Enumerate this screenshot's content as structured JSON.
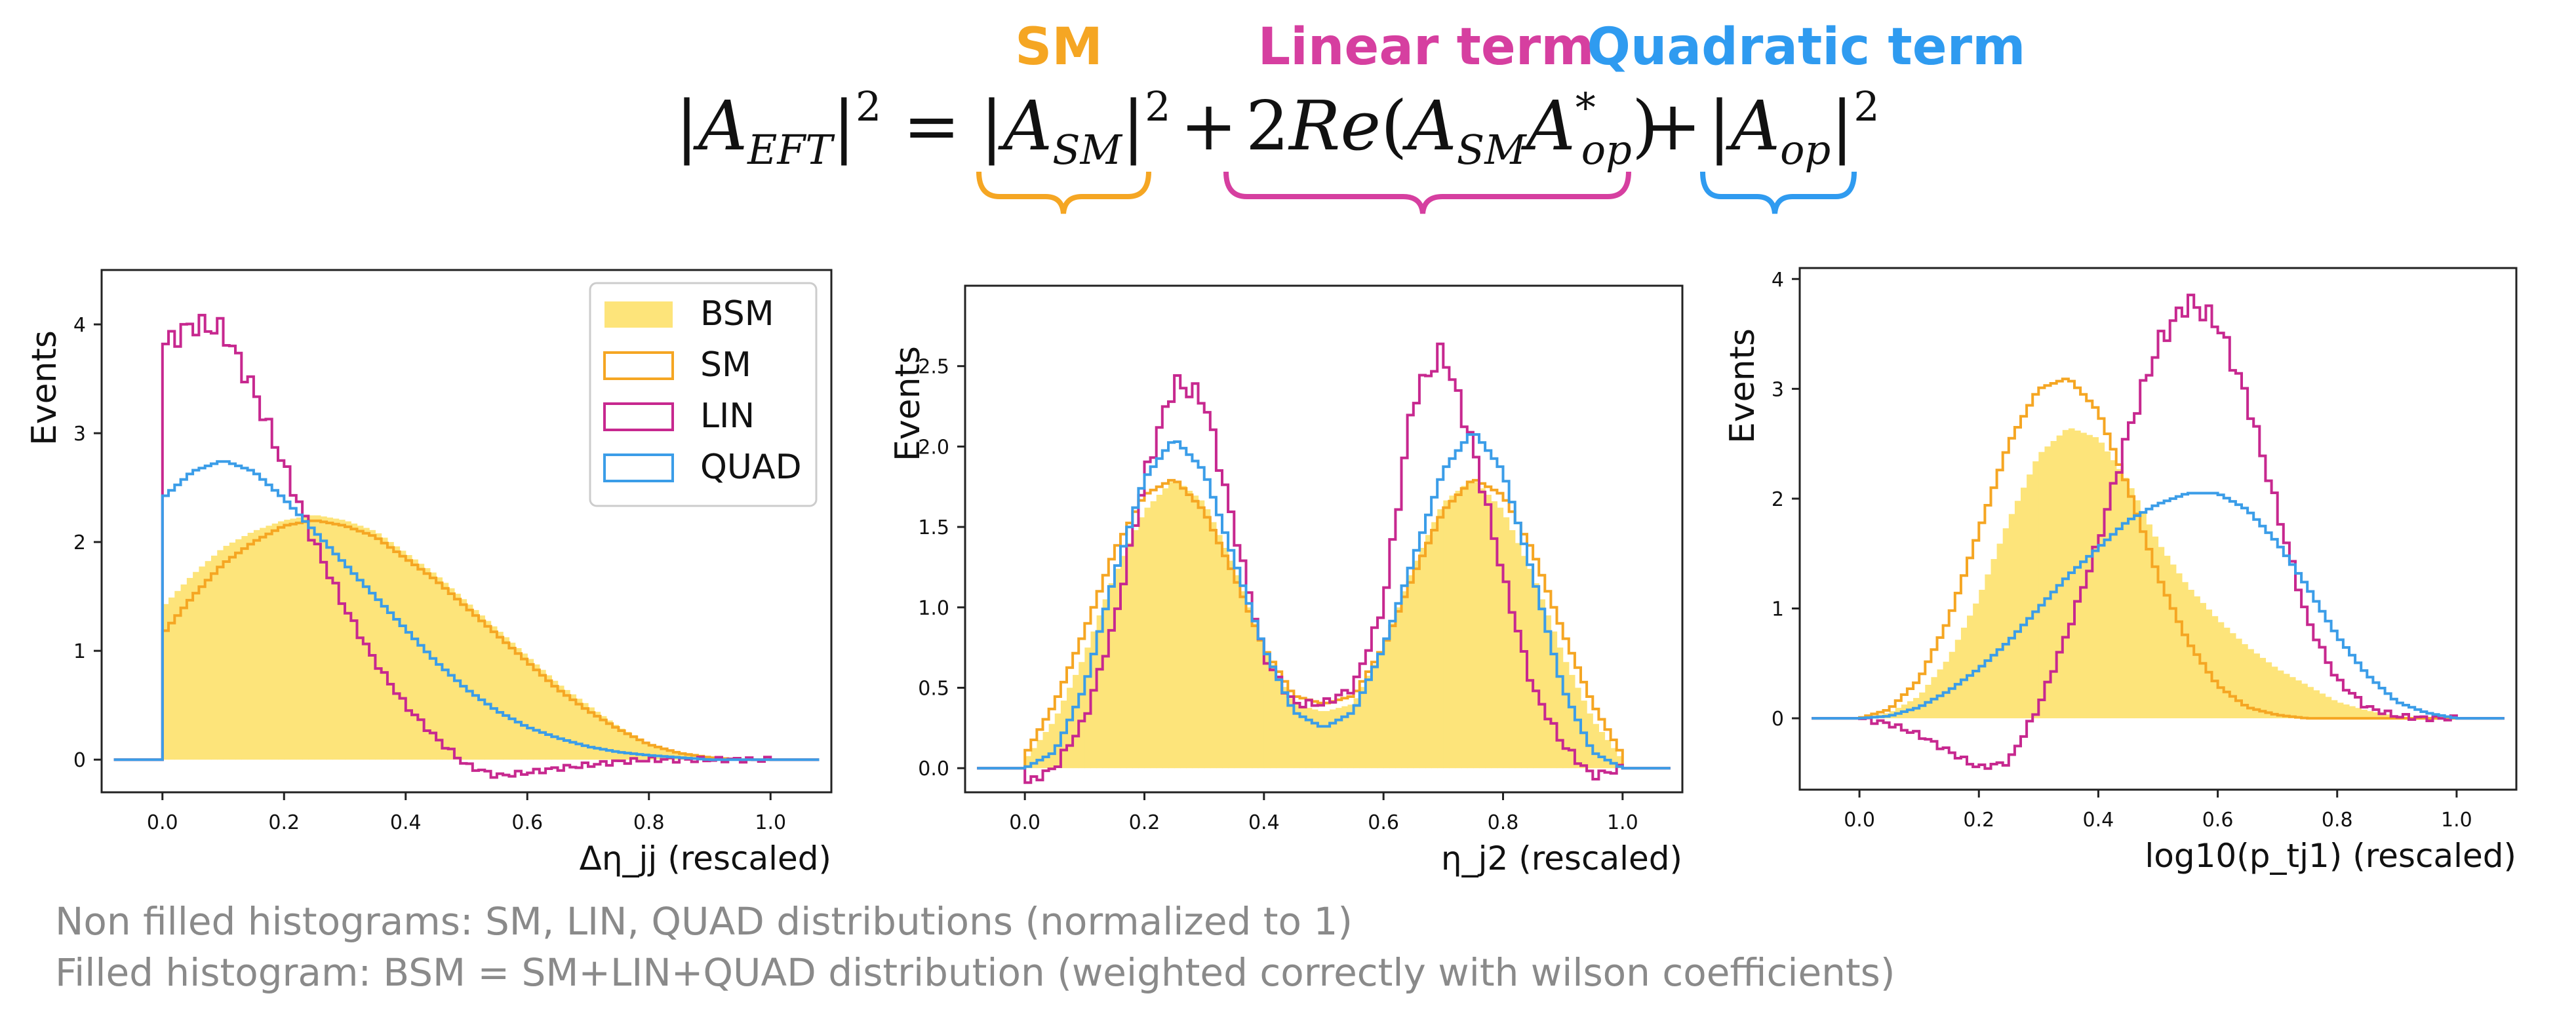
{
  "header": {
    "labels": [
      {
        "text": "SM",
        "color": "#f5a623"
      },
      {
        "text": "Linear term",
        "color": "#d63fa0"
      },
      {
        "text": "Quadratic term",
        "color": "#2f9bf0"
      }
    ],
    "equation": {
      "lhs": "|A_EFT|^2",
      "sm_term": "|A_SM|^2",
      "lin_term": "2Re(A_SM A*_op)",
      "quad_term": "|A_op|^2"
    }
  },
  "colors": {
    "BSM": "#fde47a",
    "SM": "#f5a623",
    "LIN": "#c7288f",
    "QUAD": "#3b9de8"
  },
  "legend": [
    "BSM",
    "SM",
    "LIN",
    "QUAD"
  ],
  "footnotes": [
    "Non filled histograms: SM, LIN, QUAD distributions (normalized to 1)",
    "Filled histogram: BSM = SM+LIN+QUAD distribution (weighted correctly with wilson coefficients)"
  ],
  "chart_data": [
    {
      "type": "histogram",
      "ylabel": "Events",
      "xlabel": "Δη_jj (rescaled)",
      "xlim": [
        -0.1,
        1.1
      ],
      "ylim": [
        -0.3,
        4.5
      ],
      "xticks": [
        "0.0",
        "0.2",
        "0.4",
        "0.6",
        "0.8",
        "1.0"
      ],
      "yticks": [
        "0",
        "1",
        "2",
        "3",
        "4"
      ],
      "legend": "top-right",
      "series": [
        {
          "name": "BSM",
          "filled": true,
          "x": [
            0.0,
            0.05,
            0.1,
            0.15,
            0.2,
            0.25,
            0.3,
            0.35,
            0.4,
            0.45,
            0.5,
            0.55,
            0.6,
            0.65,
            0.7,
            0.75,
            0.8,
            0.85,
            0.9,
            0.95,
            1.0
          ],
          "y": [
            1.4,
            1.7,
            1.95,
            2.1,
            2.2,
            2.25,
            2.2,
            2.1,
            1.9,
            1.7,
            1.45,
            1.2,
            0.95,
            0.7,
            0.5,
            0.3,
            0.15,
            0.07,
            0.02,
            0.0,
            0.0
          ]
        },
        {
          "name": "SM",
          "x": [
            0.0,
            0.05,
            0.1,
            0.15,
            0.2,
            0.25,
            0.3,
            0.35,
            0.4,
            0.45,
            0.5,
            0.55,
            0.6,
            0.65,
            0.7,
            0.75,
            0.8,
            0.85,
            0.9,
            0.95,
            1.0
          ],
          "y": [
            1.15,
            1.5,
            1.8,
            2.0,
            2.15,
            2.2,
            2.15,
            2.05,
            1.85,
            1.65,
            1.4,
            1.15,
            0.9,
            0.65,
            0.45,
            0.28,
            0.14,
            0.06,
            0.02,
            0.0,
            0.0
          ]
        },
        {
          "name": "LIN",
          "x": [
            0.0,
            0.05,
            0.1,
            0.15,
            0.2,
            0.25,
            0.3,
            0.35,
            0.4,
            0.45,
            0.5,
            0.55,
            0.6,
            0.65,
            0.7,
            0.75,
            0.8,
            0.85,
            0.9,
            0.95,
            1.0
          ],
          "y": [
            3.8,
            4.0,
            3.95,
            3.4,
            2.7,
            2.0,
            1.4,
            0.9,
            0.5,
            0.2,
            -0.05,
            -0.15,
            -0.12,
            -0.08,
            -0.05,
            -0.02,
            0.0,
            0.0,
            0.0,
            0.0,
            0.0
          ]
        },
        {
          "name": "QUAD",
          "x": [
            0.0,
            0.05,
            0.1,
            0.15,
            0.2,
            0.25,
            0.3,
            0.35,
            0.4,
            0.45,
            0.5,
            0.55,
            0.6,
            0.65,
            0.7,
            0.75,
            0.8,
            0.85,
            0.9,
            0.95,
            1.0
          ],
          "y": [
            2.4,
            2.65,
            2.75,
            2.65,
            2.4,
            2.1,
            1.8,
            1.5,
            1.2,
            0.9,
            0.65,
            0.45,
            0.3,
            0.2,
            0.12,
            0.07,
            0.04,
            0.02,
            0.0,
            0.0,
            0.0
          ]
        }
      ]
    },
    {
      "type": "histogram",
      "ylabel": "Events",
      "xlabel": "η_j2 (rescaled)",
      "xlim": [
        -0.1,
        1.1
      ],
      "ylim": [
        -0.15,
        3.0
      ],
      "xticks": [
        "0.0",
        "0.2",
        "0.4",
        "0.6",
        "0.8",
        "1.0"
      ],
      "yticks": [
        "0.0",
        "0.5",
        "1.0",
        "1.5",
        "2.0",
        "2.5"
      ],
      "series": [
        {
          "name": "BSM",
          "filled": true,
          "x": [
            0.0,
            0.05,
            0.1,
            0.15,
            0.2,
            0.25,
            0.3,
            0.35,
            0.4,
            0.45,
            0.5,
            0.55,
            0.6,
            0.65,
            0.7,
            0.75,
            0.8,
            0.85,
            0.9,
            0.95,
            1.0
          ],
          "y": [
            0.05,
            0.3,
            0.7,
            1.2,
            1.6,
            1.8,
            1.65,
            1.25,
            0.75,
            0.4,
            0.35,
            0.4,
            0.75,
            1.25,
            1.65,
            1.8,
            1.6,
            1.2,
            0.7,
            0.3,
            0.05
          ]
        },
        {
          "name": "SM",
          "x": [
            0.0,
            0.05,
            0.1,
            0.15,
            0.2,
            0.25,
            0.3,
            0.35,
            0.4,
            0.45,
            0.5,
            0.55,
            0.6,
            0.65,
            0.7,
            0.75,
            0.8,
            0.85,
            0.9,
            0.95,
            1.0
          ],
          "y": [
            0.08,
            0.4,
            0.85,
            1.35,
            1.7,
            1.8,
            1.6,
            1.2,
            0.75,
            0.45,
            0.4,
            0.45,
            0.75,
            1.2,
            1.6,
            1.8,
            1.7,
            1.35,
            0.85,
            0.4,
            0.08
          ]
        },
        {
          "name": "LIN",
          "x": [
            0.0,
            0.05,
            0.1,
            0.15,
            0.2,
            0.25,
            0.3,
            0.35,
            0.4,
            0.45,
            0.5,
            0.55,
            0.6,
            0.65,
            0.7,
            0.75,
            0.8,
            0.85,
            0.9,
            0.95,
            1.0
          ],
          "y": [
            -0.1,
            0.0,
            0.3,
            0.9,
            1.8,
            2.4,
            2.3,
            1.5,
            0.7,
            0.4,
            0.4,
            0.5,
            1.0,
            2.3,
            2.6,
            2.0,
            1.2,
            0.5,
            0.15,
            -0.05,
            0.0
          ]
        },
        {
          "name": "QUAD",
          "x": [
            0.0,
            0.05,
            0.1,
            0.15,
            0.2,
            0.25,
            0.3,
            0.35,
            0.4,
            0.45,
            0.5,
            0.55,
            0.6,
            0.65,
            0.7,
            0.75,
            0.8,
            0.85,
            0.9,
            0.95,
            1.0
          ],
          "y": [
            0.0,
            0.1,
            0.5,
            1.2,
            1.8,
            2.05,
            1.85,
            1.3,
            0.75,
            0.35,
            0.25,
            0.35,
            0.75,
            1.3,
            1.85,
            2.1,
            1.85,
            1.2,
            0.5,
            0.1,
            0.0
          ]
        }
      ]
    },
    {
      "type": "histogram",
      "ylabel": "Events",
      "xlabel": "log10(p_tj1) (rescaled)",
      "xlim": [
        -0.1,
        1.1
      ],
      "ylim": [
        -0.65,
        4.1
      ],
      "xticks": [
        "0.0",
        "0.2",
        "0.4",
        "0.6",
        "0.8",
        "1.0"
      ],
      "yticks": [
        "0",
        "1",
        "2",
        "3",
        "4"
      ],
      "series": [
        {
          "name": "BSM",
          "filled": true,
          "x": [
            0.0,
            0.05,
            0.1,
            0.15,
            0.2,
            0.25,
            0.3,
            0.35,
            0.4,
            0.45,
            0.5,
            0.55,
            0.6,
            0.65,
            0.7,
            0.75,
            0.8,
            0.85,
            0.9,
            0.95,
            1.0
          ],
          "y": [
            0.0,
            0.05,
            0.2,
            0.55,
            1.1,
            1.8,
            2.4,
            2.65,
            2.55,
            2.15,
            1.6,
            1.2,
            0.9,
            0.65,
            0.45,
            0.3,
            0.15,
            0.07,
            0.02,
            0.0,
            0.0
          ]
        },
        {
          "name": "SM",
          "x": [
            0.0,
            0.05,
            0.1,
            0.15,
            0.2,
            0.25,
            0.3,
            0.35,
            0.4,
            0.45,
            0.5,
            0.55,
            0.6,
            0.65,
            0.7,
            0.75,
            0.8,
            0.85,
            0.9,
            0.95,
            1.0
          ],
          "y": [
            0.0,
            0.08,
            0.35,
            0.9,
            1.7,
            2.5,
            3.0,
            3.1,
            2.8,
            2.1,
            1.3,
            0.7,
            0.3,
            0.1,
            0.03,
            0.0,
            0.0,
            0.0,
            0.0,
            0.0,
            0.0
          ]
        },
        {
          "name": "LIN",
          "x": [
            0.0,
            0.05,
            0.1,
            0.15,
            0.2,
            0.25,
            0.3,
            0.35,
            0.4,
            0.45,
            0.5,
            0.55,
            0.6,
            0.65,
            0.7,
            0.75,
            0.8,
            0.85,
            0.9,
            0.95,
            1.0
          ],
          "y": [
            0.0,
            -0.05,
            -0.15,
            -0.3,
            -0.45,
            -0.4,
            0.1,
            0.8,
            1.6,
            2.6,
            3.4,
            3.8,
            3.6,
            2.9,
            1.9,
            0.9,
            0.35,
            0.1,
            0.02,
            0.0,
            0.0
          ]
        },
        {
          "name": "QUAD",
          "x": [
            0.0,
            0.05,
            0.1,
            0.15,
            0.2,
            0.25,
            0.3,
            0.35,
            0.4,
            0.45,
            0.5,
            0.55,
            0.6,
            0.65,
            0.7,
            0.75,
            0.8,
            0.85,
            0.9,
            0.95,
            1.0
          ],
          "y": [
            0.0,
            0.02,
            0.1,
            0.25,
            0.45,
            0.7,
            1.0,
            1.3,
            1.55,
            1.8,
            1.95,
            2.05,
            2.05,
            1.9,
            1.6,
            1.2,
            0.75,
            0.4,
            0.15,
            0.05,
            0.0
          ]
        }
      ]
    }
  ]
}
